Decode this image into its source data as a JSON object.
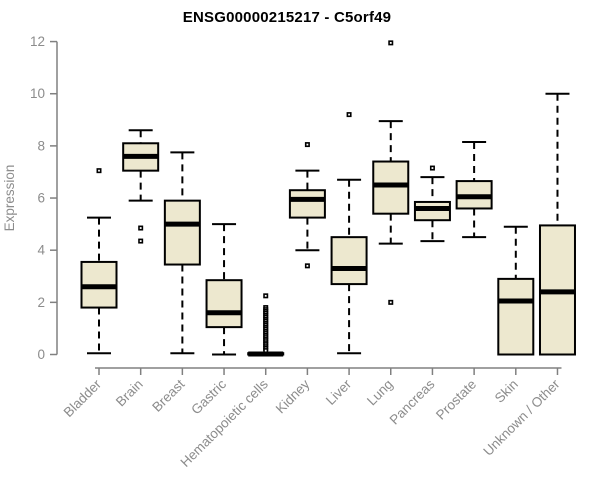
{
  "colors": {
    "background": "#ffffff",
    "box_fill": "#ede8cf",
    "box_stroke": "#000000",
    "median": "#000000",
    "whisker": "#000000",
    "outlier": "#000000",
    "axis": "#808080",
    "tick_text": "#8c8c8c",
    "title_text": "#000000"
  },
  "chart_data": {
    "type": "boxplot",
    "title": "ENSG00000215217 - C5orf49",
    "xlabel": "",
    "ylabel": "Expression",
    "ylim": [
      0,
      12
    ],
    "yticks": [
      0,
      2,
      4,
      6,
      8,
      10,
      12
    ],
    "grid": false,
    "legend": false,
    "categories": [
      "Bladder",
      "Brain",
      "Breast",
      "Gastric",
      "Hematopoietic cells",
      "Kidney",
      "Liver",
      "Lung",
      "Pancreas",
      "Prostate",
      "Skin",
      "Unknown / Other"
    ],
    "boxes": [
      {
        "category": "Bladder",
        "whisker_low": 0.05,
        "q1": 1.8,
        "median": 2.6,
        "q3": 3.55,
        "whisker_high": 5.25,
        "outliers": [
          7.05
        ]
      },
      {
        "category": "Brain",
        "whisker_low": 5.9,
        "q1": 7.05,
        "median": 7.6,
        "q3": 8.1,
        "whisker_high": 8.6,
        "outliers": [
          4.85,
          4.35
        ]
      },
      {
        "category": "Breast",
        "whisker_low": 0.05,
        "q1": 3.45,
        "median": 5.0,
        "q3": 5.9,
        "whisker_high": 7.75,
        "outliers": []
      },
      {
        "category": "Gastric",
        "whisker_low": 0.0,
        "q1": 1.05,
        "median": 1.6,
        "q3": 2.85,
        "whisker_high": 5.0,
        "outliers": []
      },
      {
        "category": "Hematopoietic cells",
        "whisker_low": 0.0,
        "q1": 0.0,
        "median": 0.02,
        "q3": 0.05,
        "whisker_high": 0.05,
        "outliers": [
          2.25,
          1.8,
          1.72,
          1.65,
          1.58,
          1.5,
          1.43,
          1.35,
          1.28,
          1.2,
          1.13,
          1.05,
          0.98,
          0.9,
          0.83,
          0.75,
          0.68,
          0.6,
          0.53,
          0.45,
          0.38,
          0.3,
          0.23,
          0.15
        ]
      },
      {
        "category": "Kidney",
        "whisker_low": 4.0,
        "q1": 5.25,
        "median": 5.95,
        "q3": 6.3,
        "whisker_high": 7.05,
        "outliers": [
          8.05,
          3.4
        ]
      },
      {
        "category": "Liver",
        "whisker_low": 0.05,
        "q1": 2.7,
        "median": 3.3,
        "q3": 4.5,
        "whisker_high": 6.7,
        "outliers": [
          9.2
        ]
      },
      {
        "category": "Lung",
        "whisker_low": 4.25,
        "q1": 5.4,
        "median": 6.5,
        "q3": 7.4,
        "whisker_high": 8.95,
        "outliers": [
          11.95,
          2.0
        ]
      },
      {
        "category": "Pancreas",
        "whisker_low": 4.35,
        "q1": 5.15,
        "median": 5.6,
        "q3": 5.85,
        "whisker_high": 6.8,
        "outliers": [
          7.15
        ]
      },
      {
        "category": "Prostate",
        "whisker_low": 4.5,
        "q1": 5.6,
        "median": 6.05,
        "q3": 6.65,
        "whisker_high": 8.15,
        "outliers": []
      },
      {
        "category": "Skin",
        "whisker_low": 0.0,
        "q1": 0.0,
        "median": 2.05,
        "q3": 2.9,
        "whisker_high": 4.9,
        "outliers": []
      },
      {
        "category": "Unknown / Other",
        "whisker_low": 0.0,
        "q1": 0.0,
        "median": 2.4,
        "q3": 4.95,
        "whisker_high": 10.0,
        "outliers": []
      }
    ]
  }
}
